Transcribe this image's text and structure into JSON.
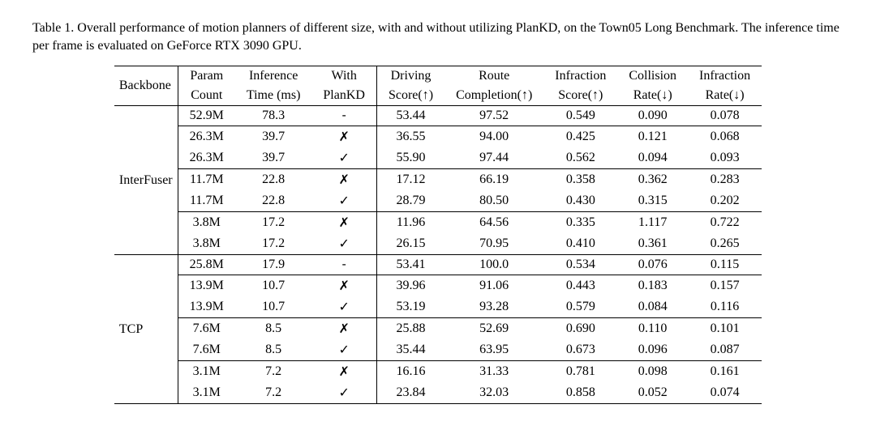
{
  "caption": "Table 1. Overall performance of motion planners of different size, with and without utilizing PlanKD, on the Town05 Long Benchmark. The inference time per frame is evaluated on GeForce RTX 3090 GPU.",
  "header": {
    "backbone": "Backbone",
    "param_top": "Param",
    "param_bot": "Count",
    "inf_top": "Inference",
    "inf_bot": "Time (ms)",
    "with_top": "With",
    "with_bot": "PlanKD",
    "drive_top": "Driving",
    "drive_bot": "Score(↑)",
    "route_top": "Route",
    "route_bot": "Completion(↑)",
    "infs_top": "Infraction",
    "infs_bot": "Score(↑)",
    "coll_top": "Collision",
    "coll_bot": "Rate(↓)",
    "infr_top": "Infraction",
    "infr_bot": "Rate(↓)"
  },
  "marks": {
    "yes": "✓",
    "no": "✗",
    "dash": "-"
  },
  "backbones": {
    "interfuser": "InterFuser",
    "tcp": "TCP"
  },
  "rows": [
    {
      "g": "if",
      "param": "52.9M",
      "inf": "78.3",
      "with": "dash",
      "drive": "53.44",
      "route": "97.52",
      "infs": "0.549",
      "coll": "0.090",
      "infr": "0.078"
    },
    {
      "g": "if",
      "param": "26.3M",
      "inf": "39.7",
      "with": "no",
      "drive": "36.55",
      "route": "94.00",
      "infs": "0.425",
      "coll": "0.121",
      "infr": "0.068"
    },
    {
      "g": "if",
      "param": "26.3M",
      "inf": "39.7",
      "with": "yes",
      "drive": "55.90",
      "route": "97.44",
      "infs": "0.562",
      "coll": "0.094",
      "infr": "0.093"
    },
    {
      "g": "if",
      "param": "11.7M",
      "inf": "22.8",
      "with": "no",
      "drive": "17.12",
      "route": "66.19",
      "infs": "0.358",
      "coll": "0.362",
      "infr": "0.283"
    },
    {
      "g": "if",
      "param": "11.7M",
      "inf": "22.8",
      "with": "yes",
      "drive": "28.79",
      "route": "80.50",
      "infs": "0.430",
      "coll": "0.315",
      "infr": "0.202"
    },
    {
      "g": "if",
      "param": "3.8M",
      "inf": "17.2",
      "with": "no",
      "drive": "11.96",
      "route": "64.56",
      "infs": "0.335",
      "coll": "1.117",
      "infr": "0.722"
    },
    {
      "g": "if",
      "param": "3.8M",
      "inf": "17.2",
      "with": "yes",
      "drive": "26.15",
      "route": "70.95",
      "infs": "0.410",
      "coll": "0.361",
      "infr": "0.265"
    },
    {
      "g": "tcp",
      "param": "25.8M",
      "inf": "17.9",
      "with": "dash",
      "drive": "53.41",
      "route": "100.0",
      "infs": "0.534",
      "coll": "0.076",
      "infr": "0.115"
    },
    {
      "g": "tcp",
      "param": "13.9M",
      "inf": "10.7",
      "with": "no",
      "drive": "39.96",
      "route": "91.06",
      "infs": "0.443",
      "coll": "0.183",
      "infr": "0.157"
    },
    {
      "g": "tcp",
      "param": "13.9M",
      "inf": "10.7",
      "with": "yes",
      "drive": "53.19",
      "route": "93.28",
      "infs": "0.579",
      "coll": "0.084",
      "infr": "0.116"
    },
    {
      "g": "tcp",
      "param": "7.6M",
      "inf": "8.5",
      "with": "no",
      "drive": "25.88",
      "route": "52.69",
      "infs": "0.690",
      "coll": "0.110",
      "infr": "0.101"
    },
    {
      "g": "tcp",
      "param": "7.6M",
      "inf": "8.5",
      "with": "yes",
      "drive": "35.44",
      "route": "63.95",
      "infs": "0.673",
      "coll": "0.096",
      "infr": "0.087"
    },
    {
      "g": "tcp",
      "param": "3.1M",
      "inf": "7.2",
      "with": "no",
      "drive": "16.16",
      "route": "31.33",
      "infs": "0.781",
      "coll": "0.098",
      "infr": "0.161"
    },
    {
      "g": "tcp",
      "param": "3.1M",
      "inf": "7.2",
      "with": "yes",
      "drive": "23.84",
      "route": "32.03",
      "infs": "0.858",
      "coll": "0.052",
      "infr": "0.074"
    }
  ],
  "subgroup_breaks_after": [
    0,
    2,
    4,
    7,
    9,
    11
  ],
  "group_breaks_after": [
    6
  ]
}
